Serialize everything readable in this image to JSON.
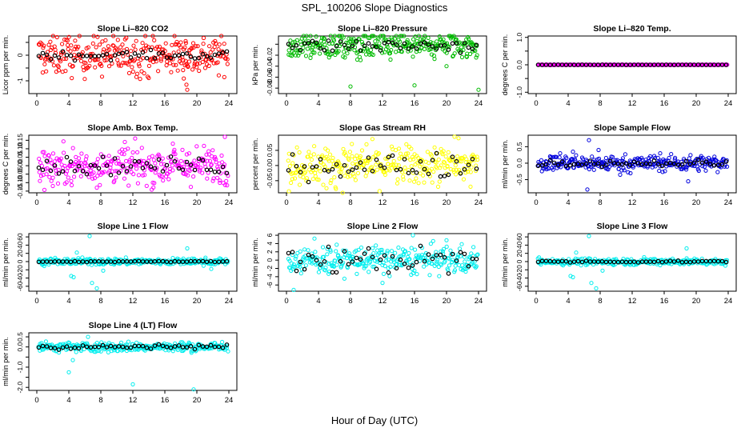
{
  "figure": {
    "title": "SPL_100206  Slope Diagnostics",
    "xlabel": "Hour of Day (UTC)"
  },
  "chart_data": [
    {
      "type": "scatter",
      "title": "Slope Li–820 CO2",
      "ylabel": "Licor ppm per min.",
      "color": "#ff0000",
      "base": 0.0,
      "noise": 0.4,
      "mean_noise": 0.08,
      "xlim": [
        -1,
        25
      ],
      "ylim": [
        -1.5,
        0.75
      ],
      "yticks": [
        -1,
        -0.5,
        0,
        0.5
      ],
      "yticklabels": [
        "-1",
        "",
        "0",
        ""
      ],
      "outliers": [
        [
          18.6,
          0.55
        ],
        [
          18.7,
          -1.15
        ],
        [
          18.8,
          -1.35
        ],
        [
          18.5,
          0.3
        ],
        [
          18.3,
          -0.2
        ],
        [
          19.1,
          0.2
        ],
        [
          17.9,
          -0.1
        ],
        [
          18.9,
          -0.45
        ]
      ],
      "blue_outliers": []
    },
    {
      "type": "scatter",
      "title": "Slope Li–820 Pressure",
      "ylabel": "kPa per min.",
      "color": "#00bb00",
      "base": -0.003,
      "noise": 0.012,
      "mean_noise": 0.006,
      "xlim": [
        -1,
        25
      ],
      "ylim": [
        -0.09,
        0.015
      ],
      "yticks": [
        -0.08,
        -0.06,
        -0.04,
        -0.02,
        0
      ],
      "yticklabels": [
        "-0.08",
        "-0.06",
        "-0.04",
        "-0.02",
        ""
      ],
      "outliers": [
        [
          8.0,
          -0.077
        ],
        [
          16.0,
          -0.075
        ],
        [
          24.0,
          -0.083
        ],
        [
          20.0,
          -0.04
        ],
        [
          13.0,
          -0.028
        ],
        [
          3.0,
          -0.025
        ],
        [
          22.5,
          -0.022
        ],
        [
          0.5,
          -0.02
        ]
      ],
      "blue_outliers": []
    },
    {
      "type": "scatter",
      "title": "Slope Li–820 Temp.",
      "ylabel": "degrees C per min.",
      "color": "#ff00ff",
      "base": 0.0,
      "noise": 0.004,
      "mean_noise": 0.002,
      "xlim": [
        -1,
        25
      ],
      "ylim": [
        -1.05,
        1.05
      ],
      "yticks": [
        -1,
        -0.5,
        0,
        0.5,
        1
      ],
      "yticklabels": [
        "-1.0",
        "",
        "0.0",
        "",
        "1.0"
      ],
      "outliers": [],
      "blue_outliers": []
    },
    {
      "type": "scatter",
      "title": "Slope Amb. Box Temp.",
      "ylabel": "degrees C per min.",
      "color": "#ff00ff",
      "base": 0.0,
      "noise": 0.055,
      "mean_noise": 0.025,
      "xlim": [
        -1,
        25
      ],
      "ylim": [
        -0.16,
        0.18
      ],
      "yticks": [
        -0.15,
        -0.1,
        -0.05,
        0,
        0.05,
        0.1,
        0.15
      ],
      "yticklabels": [
        "-0.15",
        "-0.10",
        "-0.05",
        "0.00",
        "0.05",
        "0.10",
        "0.15"
      ],
      "outliers": [
        [
          7.5,
          -0.13
        ],
        [
          23.5,
          0.17
        ],
        [
          11.0,
          0.14
        ],
        [
          2.0,
          -0.12
        ],
        [
          17.0,
          0.13
        ],
        [
          14.5,
          -0.1
        ]
      ],
      "blue_outliers": []
    },
    {
      "type": "scatter",
      "title": "Slope Gas Stream RH",
      "ylabel": "percent per min.",
      "color": "#ffff00",
      "base": 0.0,
      "noise": 0.032,
      "mean_noise": 0.02,
      "xlim": [
        -1,
        25
      ],
      "ylim": [
        -0.09,
        0.1
      ],
      "yticks": [
        -0.05,
        0,
        0.05
      ],
      "yticklabels": [
        "-0.05",
        "0.00",
        "0.05"
      ],
      "outliers": [
        [
          21.0,
          0.095
        ],
        [
          21.5,
          0.09
        ],
        [
          0.3,
          -0.085
        ],
        [
          23.0,
          -0.07
        ],
        [
          5.0,
          -0.075
        ],
        [
          10.0,
          0.07
        ]
      ],
      "blue_outliers": []
    },
    {
      "type": "scatter",
      "title": "Slope Sample Flow",
      "ylabel": "ml/min per min.",
      "color": "#0000dd",
      "base": 0.0,
      "noise": 0.12,
      "mean_noise": 0.05,
      "xlim": [
        -1,
        25
      ],
      "ylim": [
        -0.9,
        0.85
      ],
      "yticks": [
        -0.5,
        0,
        0.5
      ],
      "yticklabels": [
        "-0.5",
        "0.0",
        "0.5"
      ],
      "outliers": [
        [
          6.6,
          0.7
        ],
        [
          6.4,
          -0.8
        ],
        [
          4.6,
          0.35
        ],
        [
          19.0,
          -0.55
        ],
        [
          7.8,
          0.4
        ],
        [
          10.5,
          -0.35
        ],
        [
          3.0,
          0.3
        ],
        [
          15.5,
          0.3
        ]
      ],
      "blue_outliers": []
    },
    {
      "type": "scatter",
      "title": "Slope Line 1 Flow",
      "ylabel": "ml/min per min.",
      "color": "#00eeee",
      "base": 0.0,
      "noise": 4.0,
      "mean_noise": 0.6,
      "xlim": [
        -1,
        25
      ],
      "ylim": [
        -72,
        68
      ],
      "yticks": [
        -60,
        -40,
        -20,
        0,
        20,
        40,
        60
      ],
      "yticklabels": [
        "-60",
        "-40",
        "-20",
        "0",
        "20",
        "40",
        "60"
      ],
      "outliers": [
        [
          6.6,
          62
        ],
        [
          7.5,
          -65
        ],
        [
          6.9,
          -52
        ],
        [
          4.6,
          -38
        ],
        [
          18.8,
          32
        ],
        [
          5.0,
          22
        ],
        [
          4.3,
          -35
        ],
        [
          21.8,
          -18
        ],
        [
          8.3,
          -22
        ]
      ],
      "blue_outliers": []
    },
    {
      "type": "scatter",
      "title": "Slope Line 2 Flow",
      "ylabel": "ml/min per min.",
      "color": "#00eeee",
      "base": 0.0,
      "noise": 1.7,
      "mean_noise": 1.6,
      "xlim": [
        -1,
        25
      ],
      "ylim": [
        -7.5,
        6.4
      ],
      "yticks": [
        -6,
        -4,
        -2,
        0,
        2,
        4,
        6
      ],
      "yticklabels": [
        "-6",
        "-4",
        "-2",
        "0",
        "2",
        "4",
        "6"
      ],
      "outliers": [
        [
          0.9,
          -7.2
        ],
        [
          15.8,
          6.0
        ],
        [
          3.5,
          5.2
        ],
        [
          12.0,
          -5.5
        ],
        [
          20.0,
          4.8
        ]
      ],
      "blue_outliers": []
    },
    {
      "type": "scatter",
      "title": "Slope Line 3 Flow",
      "ylabel": "ml/min per min.",
      "color": "#00eeee",
      "base": 0.0,
      "noise": 4.0,
      "mean_noise": 1.2,
      "xlim": [
        -1,
        25
      ],
      "ylim": [
        -72,
        68
      ],
      "yticks": [
        -60,
        -40,
        -20,
        0,
        20,
        40,
        60
      ],
      "yticklabels": [
        "-60",
        "-40",
        "-20",
        "0",
        "20",
        "40",
        "60"
      ],
      "outliers": [
        [
          6.6,
          62
        ],
        [
          7.5,
          -65
        ],
        [
          6.9,
          -52
        ],
        [
          4.6,
          -38
        ],
        [
          18.8,
          32
        ],
        [
          5.0,
          22
        ],
        [
          4.3,
          -35
        ],
        [
          8.3,
          -22
        ]
      ],
      "blue_outliers": []
    },
    {
      "type": "scatter",
      "title": "Slope Line 4 (LT) Flow",
      "ylabel": "ml/min per min.",
      "color": "#00eeee",
      "base": 0.0,
      "noise": 0.12,
      "mean_noise": 0.06,
      "xlim": [
        -1,
        25
      ],
      "ylim": [
        -2.15,
        0.7
      ],
      "yticks": [
        -2,
        -1.5,
        -1,
        -0.5,
        0,
        0.5
      ],
      "yticklabels": [
        "-2.0",
        "",
        "-1.0",
        "",
        "0.0",
        "0.5"
      ],
      "outliers": [
        [
          19.6,
          -2.1
        ],
        [
          12.0,
          -1.85
        ],
        [
          4.0,
          -1.25
        ],
        [
          6.4,
          0.5
        ],
        [
          4.5,
          -0.65
        ],
        [
          0.4,
          0.15
        ]
      ],
      "blue_outliers": []
    }
  ]
}
